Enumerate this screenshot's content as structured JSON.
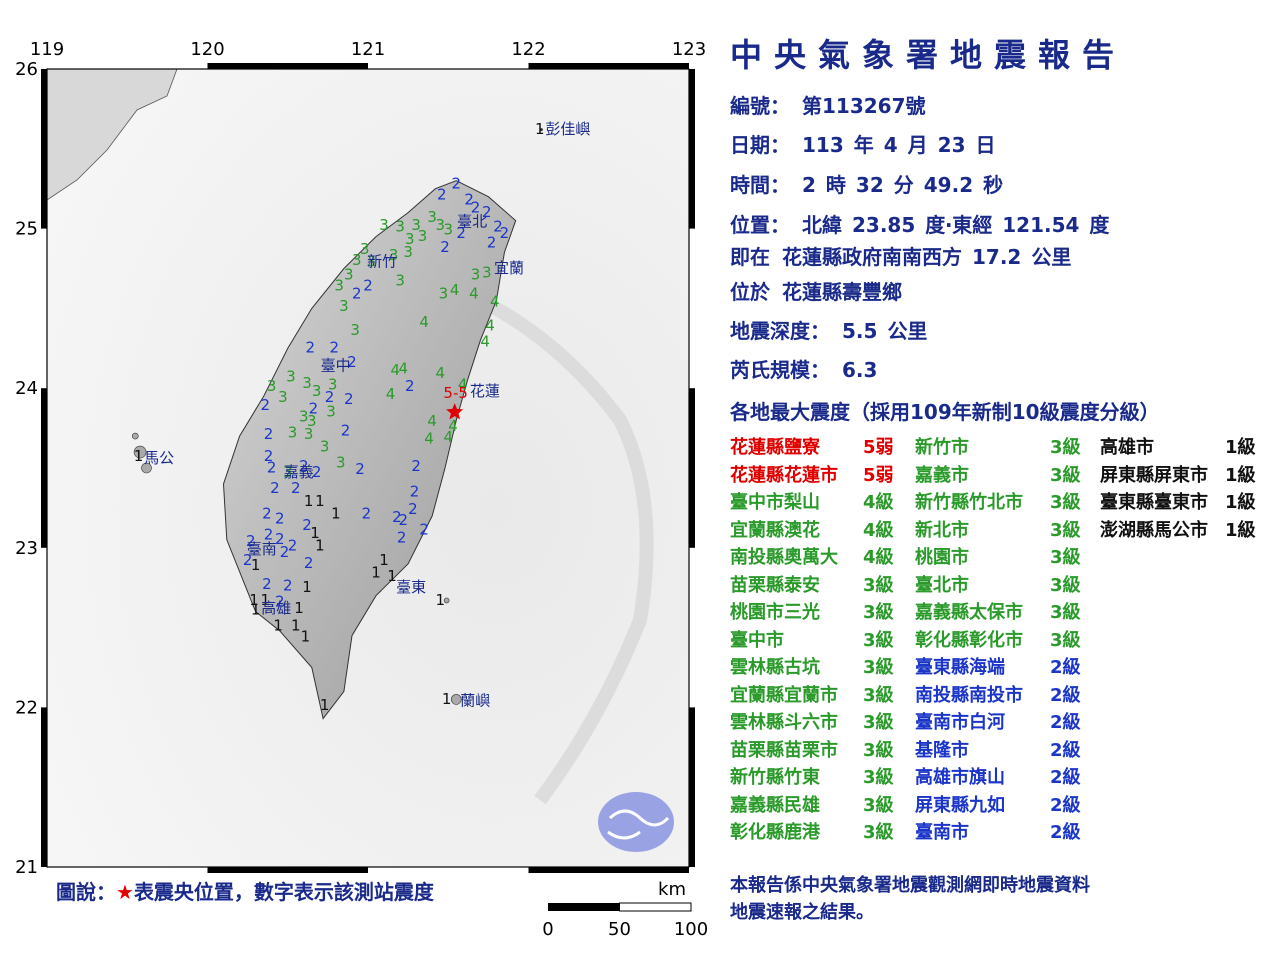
{
  "report": {
    "title": "中央氣象署地震報告",
    "number_label": "編號：",
    "number": "第113267號",
    "date_label": "日期：",
    "date_year": "113",
    "date_year_unit": "年",
    "date_month": "4",
    "date_month_unit": "月",
    "date_day": "23",
    "date_day_unit": "日",
    "time_label": "時間：",
    "time_hour": "2",
    "time_hour_unit": "時",
    "time_min": "32",
    "time_min_unit": "分",
    "time_sec": "49.2",
    "time_sec_unit": "秒",
    "loc_label": "位置：",
    "lat_label": "北緯",
    "lat": "23.85",
    "lat_unit": "度‧東經",
    "lon": "121.54",
    "lon_unit": "度",
    "relative_label": "即在",
    "relative": "花蓮縣政府南南西方",
    "relative_dist": "17.2",
    "relative_unit": "公里",
    "located_label": "位於",
    "located": "花蓮縣壽豐鄉",
    "depth_label": "地震深度：",
    "depth": "5.5",
    "depth_unit": "公里",
    "mag_label": "芮氏規模：",
    "mag": "6.3",
    "intensity_heading": "各地最大震度（採用109年新制10級震度分級）",
    "footer_line1": "本報告係中央氣象署地震觀測網即時地震資料",
    "footer_line2": "地震速報之結果。"
  },
  "intensity_columns": [
    [
      {
        "place": "花蓮縣鹽寮",
        "level": "5弱",
        "color": "#e00000"
      },
      {
        "place": "花蓮縣花蓮市",
        "level": "5弱",
        "color": "#e00000"
      },
      {
        "place": "臺中市梨山",
        "level": "4級",
        "color": "#2a9a2a"
      },
      {
        "place": "宜蘭縣澳花",
        "level": "4級",
        "color": "#2a9a2a"
      },
      {
        "place": "南投縣奧萬大",
        "level": "4級",
        "color": "#2a9a2a"
      },
      {
        "place": "苗栗縣泰安",
        "level": "3級",
        "color": "#2a9a2a"
      },
      {
        "place": "桃園市三光",
        "level": "3級",
        "color": "#2a9a2a"
      },
      {
        "place": "臺中市",
        "level": "3級",
        "color": "#2a9a2a"
      },
      {
        "place": "雲林縣古坑",
        "level": "3級",
        "color": "#2a9a2a"
      },
      {
        "place": "宜蘭縣宜蘭市",
        "level": "3級",
        "color": "#2a9a2a"
      },
      {
        "place": "雲林縣斗六市",
        "level": "3級",
        "color": "#2a9a2a"
      },
      {
        "place": "苗栗縣苗栗市",
        "level": "3級",
        "color": "#2a9a2a"
      },
      {
        "place": "新竹縣竹東",
        "level": "3級",
        "color": "#2a9a2a"
      },
      {
        "place": "嘉義縣民雄",
        "level": "3級",
        "color": "#2a9a2a"
      },
      {
        "place": "彰化縣鹿港",
        "level": "3級",
        "color": "#2a9a2a"
      }
    ],
    [
      {
        "place": "新竹市",
        "level": "3級",
        "color": "#2a9a2a"
      },
      {
        "place": "嘉義市",
        "level": "3級",
        "color": "#2a9a2a"
      },
      {
        "place": "新竹縣竹北市",
        "level": "3級",
        "color": "#2a9a2a"
      },
      {
        "place": "新北市",
        "level": "3級",
        "color": "#2a9a2a"
      },
      {
        "place": "桃園市",
        "level": "3級",
        "color": "#2a9a2a"
      },
      {
        "place": "臺北市",
        "level": "3級",
        "color": "#2a9a2a"
      },
      {
        "place": "嘉義縣太保市",
        "level": "3級",
        "color": "#2a9a2a"
      },
      {
        "place": "彰化縣彰化市",
        "level": "3級",
        "color": "#2a9a2a"
      },
      {
        "place": "臺東縣海端",
        "level": "2級",
        "color": "#1a35c8"
      },
      {
        "place": "南投縣南投市",
        "level": "2級",
        "color": "#1a35c8"
      },
      {
        "place": "臺南市白河",
        "level": "2級",
        "color": "#1a35c8"
      },
      {
        "place": "基隆市",
        "level": "2級",
        "color": "#1a35c8"
      },
      {
        "place": "高雄市旗山",
        "level": "2級",
        "color": "#1a35c8"
      },
      {
        "place": "屏東縣九如",
        "level": "2級",
        "color": "#1a35c8"
      },
      {
        "place": "臺南市",
        "level": "2級",
        "color": "#1a35c8"
      }
    ],
    [
      {
        "place": "高雄市",
        "level": "1級",
        "color": "#111111"
      },
      {
        "place": "屏東縣屏東市",
        "level": "1級",
        "color": "#111111"
      },
      {
        "place": "臺東縣臺東市",
        "level": "1級",
        "color": "#111111"
      },
      {
        "place": "澎湖縣馬公市",
        "level": "1級",
        "color": "#111111"
      }
    ]
  ],
  "map": {
    "lon_ticks": [
      "119",
      "120",
      "121",
      "122",
      "123"
    ],
    "lat_ticks": [
      "26",
      "25",
      "24",
      "23",
      "22",
      "21"
    ],
    "lon_range": [
      119,
      123
    ],
    "lat_range": [
      21,
      26
    ],
    "epicenter": {
      "lon": 121.54,
      "lat": 23.85,
      "color": "#e00000",
      "label": "5-5"
    },
    "city_labels": [
      {
        "name": "臺北",
        "lon": 121.53,
        "lat": 25.05
      },
      {
        "name": "新竹",
        "lon": 120.97,
        "lat": 24.8
      },
      {
        "name": "宜蘭",
        "lon": 121.76,
        "lat": 24.76
      },
      {
        "name": "臺中",
        "lon": 120.68,
        "lat": 24.15
      },
      {
        "name": "花蓮",
        "lon": 121.61,
        "lat": 23.99
      },
      {
        "name": "嘉義",
        "lon": 120.45,
        "lat": 23.48
      },
      {
        "name": "臺南",
        "lon": 120.22,
        "lat": 23.0
      },
      {
        "name": "臺東",
        "lon": 121.15,
        "lat": 22.76
      },
      {
        "name": "高雄",
        "lon": 120.31,
        "lat": 22.63
      },
      {
        "name": "馬公",
        "lon": 119.58,
        "lat": 23.57
      },
      {
        "name": "彭佳嶼",
        "lon": 122.08,
        "lat": 25.63
      },
      {
        "name": "蘭嶼",
        "lon": 121.55,
        "lat": 22.05
      }
    ],
    "stations": [
      {
        "lon": 121.55,
        "lat": 25.29,
        "v": "2"
      },
      {
        "lon": 121.46,
        "lat": 25.22,
        "v": "2"
      },
      {
        "lon": 121.63,
        "lat": 25.19,
        "v": "2"
      },
      {
        "lon": 121.67,
        "lat": 25.14,
        "v": "2"
      },
      {
        "lon": 121.4,
        "lat": 25.08,
        "v": "3"
      },
      {
        "lon": 121.45,
        "lat": 25.03,
        "v": "3"
      },
      {
        "lon": 121.5,
        "lat": 25.0,
        "v": "3"
      },
      {
        "lon": 121.58,
        "lat": 24.98,
        "v": "2"
      },
      {
        "lon": 121.74,
        "lat": 25.11,
        "v": "2"
      },
      {
        "lon": 121.81,
        "lat": 25.02,
        "v": "2"
      },
      {
        "lon": 121.77,
        "lat": 24.92,
        "v": "2"
      },
      {
        "lon": 121.85,
        "lat": 24.98,
        "v": "2"
      },
      {
        "lon": 121.3,
        "lat": 25.03,
        "v": "3"
      },
      {
        "lon": 121.2,
        "lat": 25.02,
        "v": "3"
      },
      {
        "lon": 121.1,
        "lat": 25.03,
        "v": "3"
      },
      {
        "lon": 121.26,
        "lat": 24.94,
        "v": "3"
      },
      {
        "lon": 121.34,
        "lat": 24.96,
        "v": "3"
      },
      {
        "lon": 121.48,
        "lat": 24.89,
        "v": "2"
      },
      {
        "lon": 121.25,
        "lat": 24.86,
        "v": "3"
      },
      {
        "lon": 121.16,
        "lat": 24.84,
        "v": "3"
      },
      {
        "lon": 121.02,
        "lat": 24.8,
        "v": "3"
      },
      {
        "lon": 120.98,
        "lat": 24.88,
        "v": "3"
      },
      {
        "lon": 120.93,
        "lat": 24.81,
        "v": "3"
      },
      {
        "lon": 120.88,
        "lat": 24.72,
        "v": "3"
      },
      {
        "lon": 120.82,
        "lat": 24.65,
        "v": "3"
      },
      {
        "lon": 121.0,
        "lat": 24.65,
        "v": "2"
      },
      {
        "lon": 120.93,
        "lat": 24.6,
        "v": "2"
      },
      {
        "lon": 121.2,
        "lat": 24.68,
        "v": "3"
      },
      {
        "lon": 121.47,
        "lat": 24.6,
        "v": "3"
      },
      {
        "lon": 121.54,
        "lat": 24.62,
        "v": "4"
      },
      {
        "lon": 121.66,
        "lat": 24.6,
        "v": "4"
      },
      {
        "lon": 121.67,
        "lat": 24.72,
        "v": "3"
      },
      {
        "lon": 121.74,
        "lat": 24.73,
        "v": "3"
      },
      {
        "lon": 121.79,
        "lat": 24.55,
        "v": "4"
      },
      {
        "lon": 120.85,
        "lat": 24.52,
        "v": "3"
      },
      {
        "lon": 120.92,
        "lat": 24.37,
        "v": "3"
      },
      {
        "lon": 121.35,
        "lat": 24.42,
        "v": "4"
      },
      {
        "lon": 121.76,
        "lat": 24.4,
        "v": "4"
      },
      {
        "lon": 121.73,
        "lat": 24.3,
        "v": "4"
      },
      {
        "lon": 120.64,
        "lat": 24.26,
        "v": "2"
      },
      {
        "lon": 120.79,
        "lat": 24.26,
        "v": "2"
      },
      {
        "lon": 120.9,
        "lat": 24.17,
        "v": "2"
      },
      {
        "lon": 121.17,
        "lat": 24.12,
        "v": "4"
      },
      {
        "lon": 121.22,
        "lat": 24.13,
        "v": "4"
      },
      {
        "lon": 121.45,
        "lat": 24.1,
        "v": "4"
      },
      {
        "lon": 121.59,
        "lat": 24.03,
        "v": "4"
      },
      {
        "lon": 121.26,
        "lat": 24.02,
        "v": "2"
      },
      {
        "lon": 120.52,
        "lat": 24.08,
        "v": "3"
      },
      {
        "lon": 120.62,
        "lat": 24.04,
        "v": "3"
      },
      {
        "lon": 120.68,
        "lat": 23.99,
        "v": "3"
      },
      {
        "lon": 120.78,
        "lat": 24.03,
        "v": "3"
      },
      {
        "lon": 120.76,
        "lat": 23.95,
        "v": "2"
      },
      {
        "lon": 120.88,
        "lat": 23.94,
        "v": "2"
      },
      {
        "lon": 121.14,
        "lat": 23.97,
        "v": "4"
      },
      {
        "lon": 120.4,
        "lat": 24.02,
        "v": "3"
      },
      {
        "lon": 120.36,
        "lat": 23.9,
        "v": "2"
      },
      {
        "lon": 120.47,
        "lat": 23.95,
        "v": "3"
      },
      {
        "lon": 120.6,
        "lat": 23.83,
        "v": "3"
      },
      {
        "lon": 120.66,
        "lat": 23.88,
        "v": "2"
      },
      {
        "lon": 120.65,
        "lat": 23.8,
        "v": "3"
      },
      {
        "lon": 120.77,
        "lat": 23.86,
        "v": "3"
      },
      {
        "lon": 120.86,
        "lat": 23.74,
        "v": "2"
      },
      {
        "lon": 121.4,
        "lat": 23.8,
        "v": "4"
      },
      {
        "lon": 121.53,
        "lat": 23.77,
        "v": "4"
      },
      {
        "lon": 121.38,
        "lat": 23.69,
        "v": "4"
      },
      {
        "lon": 121.5,
        "lat": 23.7,
        "v": "4"
      },
      {
        "lon": 120.38,
        "lat": 23.72,
        "v": "2"
      },
      {
        "lon": 120.53,
        "lat": 23.73,
        "v": "3"
      },
      {
        "lon": 120.63,
        "lat": 23.72,
        "v": "3"
      },
      {
        "lon": 120.73,
        "lat": 23.64,
        "v": "3"
      },
      {
        "lon": 120.38,
        "lat": 23.58,
        "v": "2"
      },
      {
        "lon": 120.4,
        "lat": 23.51,
        "v": "2"
      },
      {
        "lon": 120.5,
        "lat": 23.48,
        "v": "3"
      },
      {
        "lon": 120.6,
        "lat": 23.52,
        "v": "2"
      },
      {
        "lon": 120.68,
        "lat": 23.48,
        "v": "2"
      },
      {
        "lon": 120.83,
        "lat": 23.54,
        "v": "3"
      },
      {
        "lon": 120.95,
        "lat": 23.5,
        "v": "2"
      },
      {
        "lon": 121.3,
        "lat": 23.52,
        "v": "2"
      },
      {
        "lon": 120.42,
        "lat": 23.38,
        "v": "2"
      },
      {
        "lon": 120.55,
        "lat": 23.38,
        "v": "2"
      },
      {
        "lon": 120.63,
        "lat": 23.3,
        "v": "1"
      },
      {
        "lon": 120.7,
        "lat": 23.3,
        "v": "1"
      },
      {
        "lon": 120.8,
        "lat": 23.22,
        "v": "1"
      },
      {
        "lon": 121.29,
        "lat": 23.36,
        "v": "2"
      },
      {
        "lon": 120.37,
        "lat": 23.22,
        "v": "2"
      },
      {
        "lon": 120.45,
        "lat": 23.19,
        "v": "2"
      },
      {
        "lon": 120.62,
        "lat": 23.15,
        "v": "2"
      },
      {
        "lon": 120.67,
        "lat": 23.1,
        "v": "1"
      },
      {
        "lon": 120.99,
        "lat": 23.22,
        "v": "2"
      },
      {
        "lon": 121.18,
        "lat": 23.2,
        "v": "2"
      },
      {
        "lon": 121.28,
        "lat": 23.25,
        "v": "2"
      },
      {
        "lon": 121.35,
        "lat": 23.12,
        "v": "2"
      },
      {
        "lon": 121.22,
        "lat": 23.18,
        "v": "2"
      },
      {
        "lon": 121.21,
        "lat": 23.07,
        "v": "2"
      },
      {
        "lon": 120.38,
        "lat": 23.09,
        "v": "2"
      },
      {
        "lon": 120.45,
        "lat": 23.06,
        "v": "2"
      },
      {
        "lon": 120.27,
        "lat": 23.05,
        "v": "2"
      },
      {
        "lon": 120.53,
        "lat": 23.02,
        "v": "2"
      },
      {
        "lon": 120.48,
        "lat": 22.98,
        "v": "2"
      },
      {
        "lon": 120.7,
        "lat": 23.02,
        "v": "1"
      },
      {
        "lon": 120.25,
        "lat": 22.93,
        "v": "2"
      },
      {
        "lon": 120.63,
        "lat": 22.91,
        "v": "2"
      },
      {
        "lon": 120.3,
        "lat": 22.9,
        "v": "1"
      },
      {
        "lon": 121.1,
        "lat": 22.93,
        "v": "1"
      },
      {
        "lon": 121.05,
        "lat": 22.85,
        "v": "1"
      },
      {
        "lon": 121.15,
        "lat": 22.83,
        "v": "1"
      },
      {
        "lon": 120.37,
        "lat": 22.78,
        "v": "2"
      },
      {
        "lon": 120.5,
        "lat": 22.77,
        "v": "2"
      },
      {
        "lon": 120.62,
        "lat": 22.76,
        "v": "1"
      },
      {
        "lon": 120.29,
        "lat": 22.68,
        "v": "1"
      },
      {
        "lon": 120.36,
        "lat": 22.68,
        "v": "1"
      },
      {
        "lon": 120.45,
        "lat": 22.67,
        "v": "2"
      },
      {
        "lon": 121.45,
        "lat": 22.68,
        "v": "1"
      },
      {
        "lon": 120.3,
        "lat": 22.62,
        "v": "1"
      },
      {
        "lon": 120.57,
        "lat": 22.63,
        "v": "1"
      },
      {
        "lon": 120.44,
        "lat": 22.52,
        "v": "1"
      },
      {
        "lon": 120.55,
        "lat": 22.52,
        "v": "1"
      },
      {
        "lon": 120.61,
        "lat": 22.45,
        "v": "1"
      },
      {
        "lon": 120.73,
        "lat": 22.02,
        "v": "1"
      },
      {
        "lon": 122.07,
        "lat": 25.63,
        "v": "1"
      },
      {
        "lon": 121.49,
        "lat": 22.06,
        "v": "1"
      },
      {
        "lon": 119.57,
        "lat": 23.58,
        "v": "1"
      }
    ],
    "scale_label_unit": "km",
    "scale_ticks": [
      "0",
      "50",
      "100"
    ],
    "legend_prefix": "圖說：",
    "legend_star": "★",
    "legend_text": "表震央位置，數字表示該測站震度",
    "level_colors": {
      "1": "#111111",
      "2": "#1a35c8",
      "3": "#2a9a2a",
      "4": "#2a9a2a",
      "5": "#e00000"
    }
  }
}
